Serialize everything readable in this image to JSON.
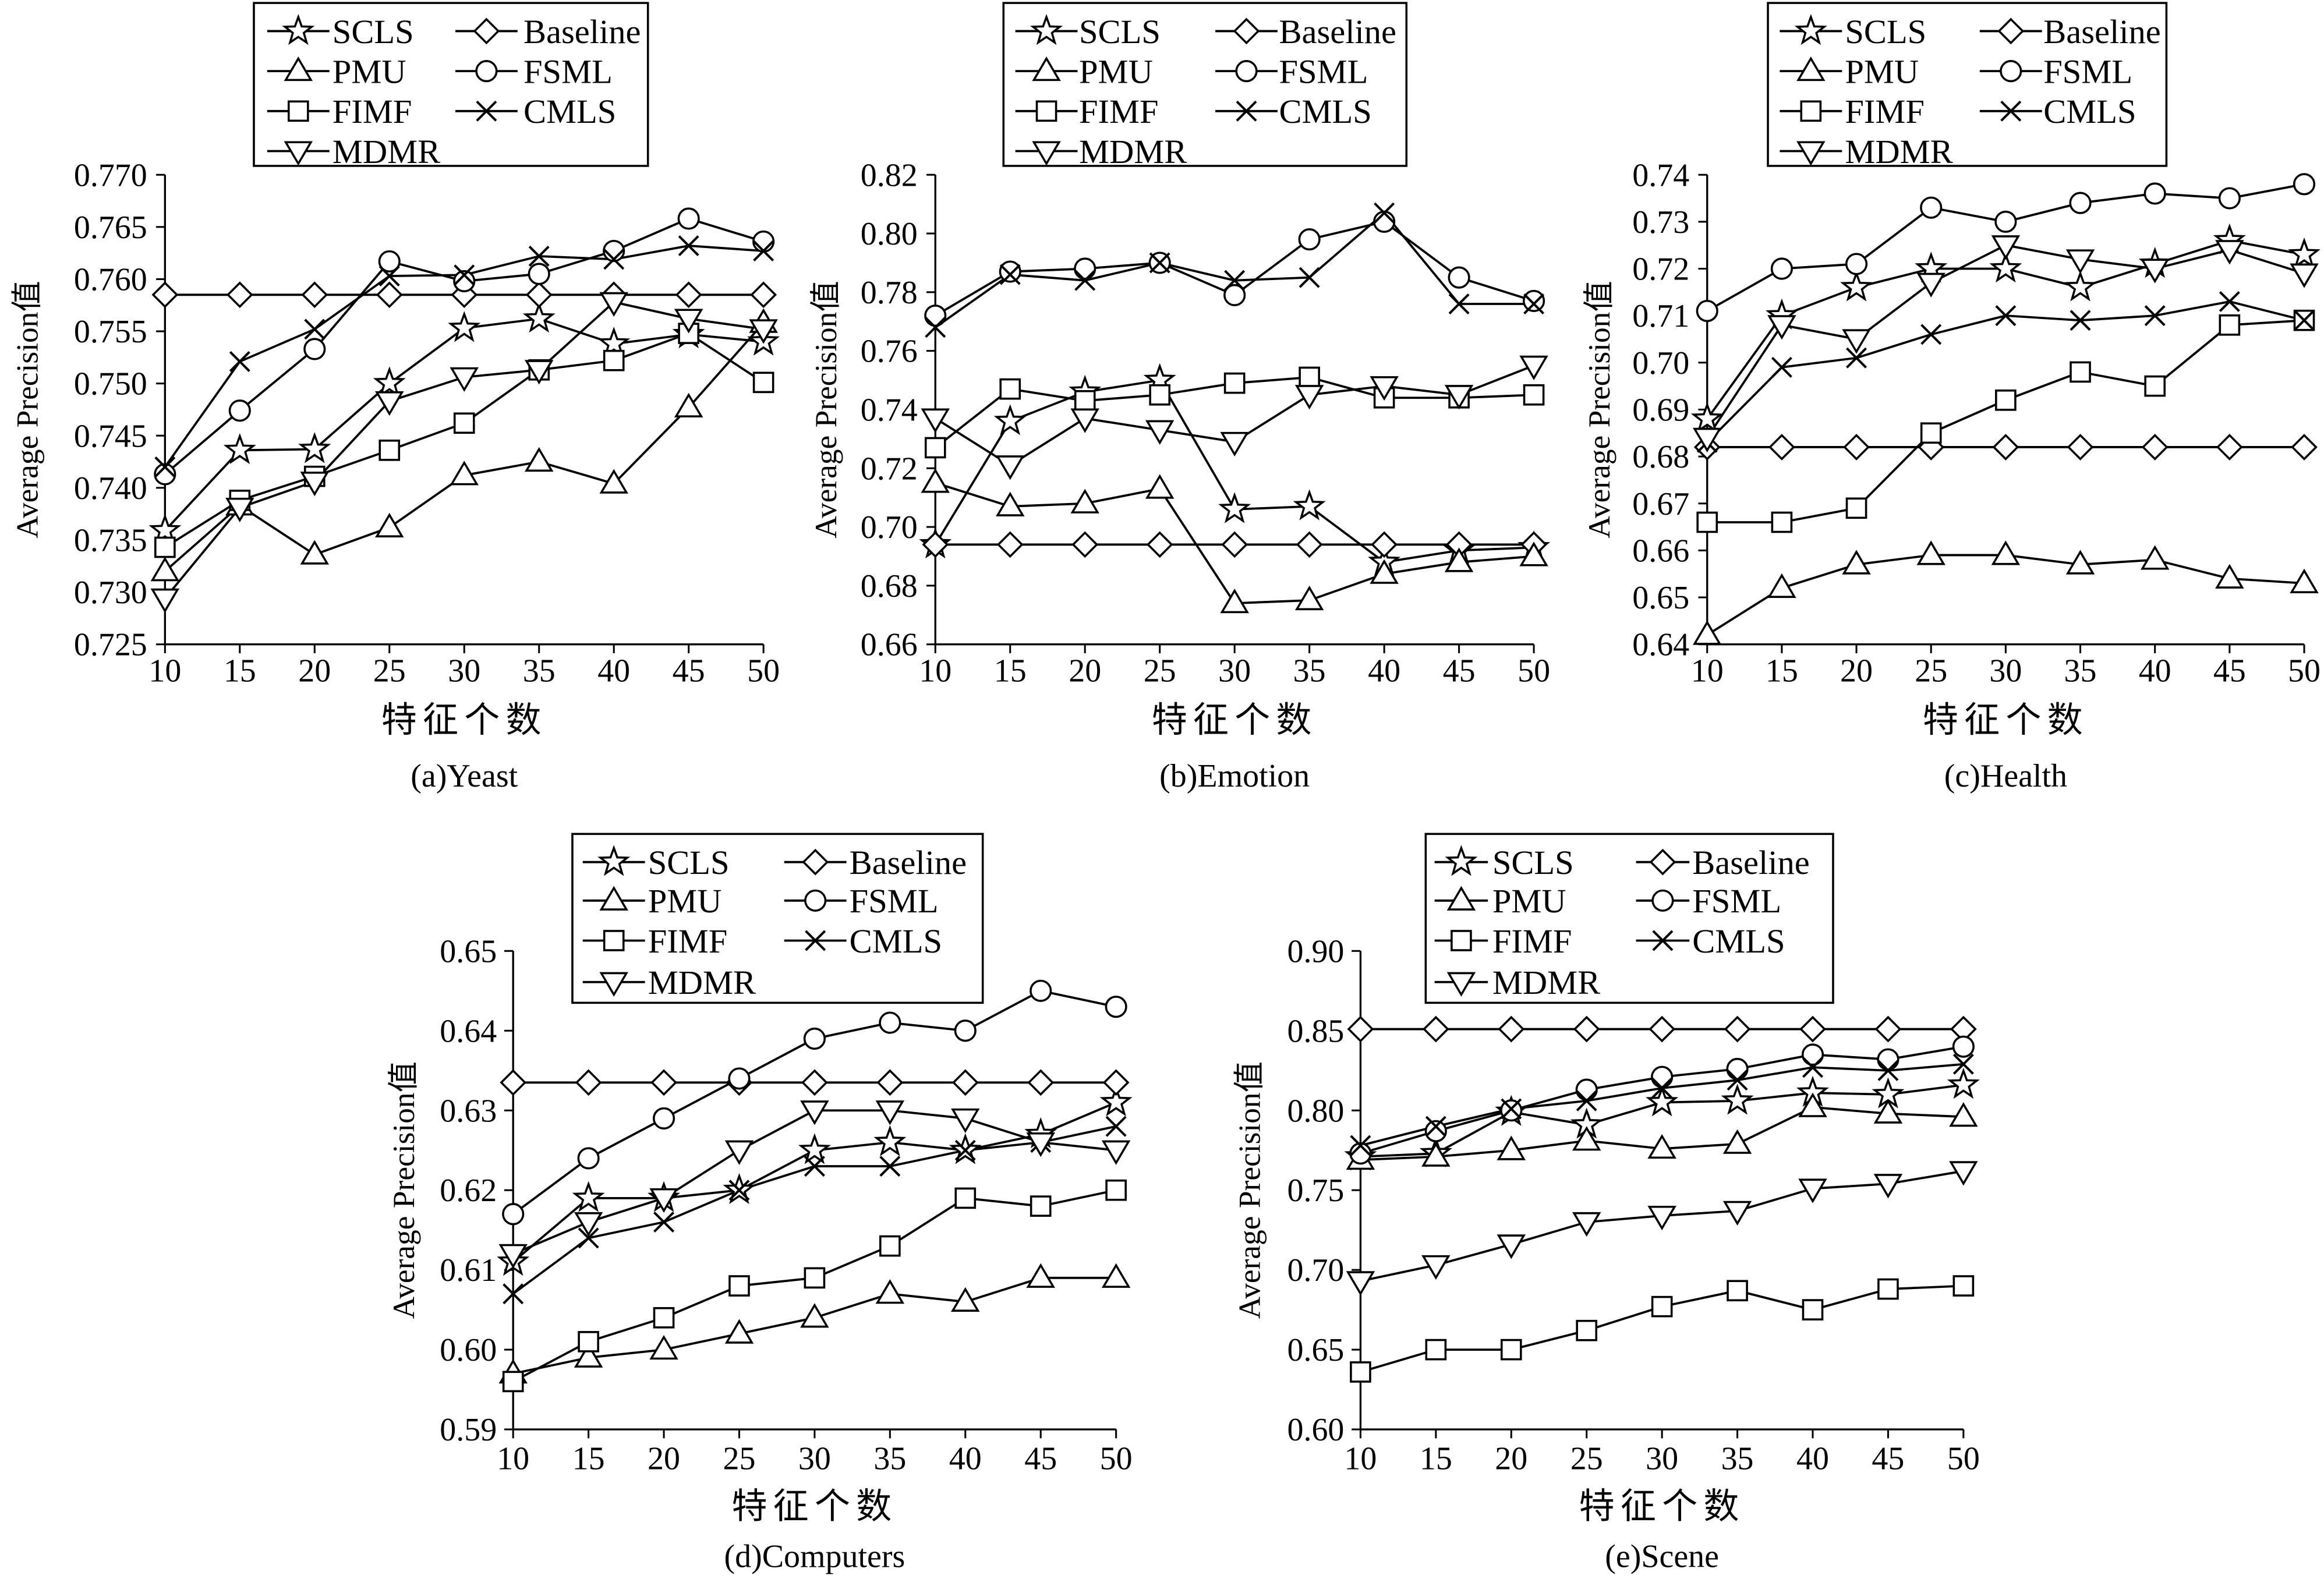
{
  "chart_data": [
    {
      "type": "line",
      "caption": "(a)Yeast",
      "xlabel": "特征个数",
      "ylabel": "Average Precision值",
      "x": [
        10,
        15,
        20,
        25,
        30,
        35,
        40,
        45,
        50
      ],
      "ylim": [
        0.725,
        0.77
      ],
      "yticks": [
        "0.725",
        "0.730",
        "0.735",
        "0.740",
        "0.745",
        "0.750",
        "0.755",
        "0.760",
        "0.765",
        "0.770"
      ],
      "grid": false,
      "legend": "top",
      "line_color": "#000000",
      "series": [
        {
          "name": "SCLS",
          "marker": "star",
          "values": [
            0.7359,
            0.7436,
            0.7437,
            0.75,
            0.7553,
            0.7562,
            0.7538,
            0.7547,
            0.754
          ]
        },
        {
          "name": "Baseline",
          "marker": "diamond",
          "values": [
            0.7585,
            0.7585,
            0.7585,
            0.7585,
            0.7585,
            0.7585,
            0.7585,
            0.7585,
            0.7585
          ]
        },
        {
          "name": "PMU",
          "marker": "triangle",
          "values": [
            0.732,
            0.7383,
            0.7336,
            0.7362,
            0.7412,
            0.7425,
            0.7404,
            0.7477,
            0.7558
          ]
        },
        {
          "name": "FSML",
          "marker": "circle",
          "values": [
            0.7413,
            0.7474,
            0.7533,
            0.7617,
            0.7598,
            0.7605,
            0.7627,
            0.7658,
            0.7636
          ]
        },
        {
          "name": "FIMF",
          "marker": "square",
          "values": [
            0.7343,
            0.7388,
            0.7411,
            0.7436,
            0.7462,
            0.7513,
            0.7522,
            0.7548,
            0.7501
          ]
        },
        {
          "name": "CMLS",
          "marker": "x",
          "values": [
            0.742,
            0.7521,
            0.7552,
            0.7603,
            0.7604,
            0.7622,
            0.7619,
            0.7632,
            0.7627
          ]
        },
        {
          "name": "MDMR",
          "marker": "triangle-down",
          "values": [
            0.7294,
            0.7381,
            0.7406,
            0.7483,
            0.7506,
            0.7513,
            0.7578,
            0.7562,
            0.7552
          ]
        }
      ]
    },
    {
      "type": "line",
      "caption": "(b)Emotion",
      "xlabel": "特征个数",
      "ylabel": "Average Precision值",
      "x": [
        10,
        15,
        20,
        25,
        30,
        35,
        40,
        45,
        50
      ],
      "ylim": [
        0.66,
        0.82
      ],
      "yticks": [
        "0.66",
        "0.68",
        "0.70",
        "0.72",
        "0.74",
        "0.76",
        "0.78",
        "0.80",
        "0.82"
      ],
      "grid": false,
      "legend": "top",
      "line_color": "#000000",
      "series": [
        {
          "name": "SCLS",
          "marker": "star",
          "values": [
            0.694,
            0.736,
            0.746,
            0.75,
            0.706,
            0.707,
            0.688,
            0.692,
            0.693
          ]
        },
        {
          "name": "Baseline",
          "marker": "diamond",
          "values": [
            0.694,
            0.694,
            0.694,
            0.694,
            0.694,
            0.694,
            0.694,
            0.694,
            0.694
          ]
        },
        {
          "name": "PMU",
          "marker": "triangle",
          "values": [
            0.715,
            0.707,
            0.708,
            0.713,
            0.674,
            0.675,
            0.684,
            0.688,
            0.69
          ]
        },
        {
          "name": "FSML",
          "marker": "circle",
          "values": [
            0.772,
            0.787,
            0.788,
            0.79,
            0.779,
            0.798,
            0.804,
            0.785,
            0.777
          ]
        },
        {
          "name": "FIMF",
          "marker": "square",
          "values": [
            0.727,
            0.747,
            0.743,
            0.745,
            0.749,
            0.751,
            0.744,
            0.744,
            0.745
          ]
        },
        {
          "name": "CMLS",
          "marker": "x",
          "values": [
            0.768,
            0.786,
            0.784,
            0.79,
            0.784,
            0.785,
            0.807,
            0.776,
            0.776
          ]
        },
        {
          "name": "MDMR",
          "marker": "triangle-down",
          "values": [
            0.737,
            0.721,
            0.737,
            0.733,
            0.729,
            0.745,
            0.748,
            0.745,
            0.755
          ]
        }
      ]
    },
    {
      "type": "line",
      "caption": "(c)Health",
      "xlabel": "特征个数",
      "ylabel": "Average Precision值",
      "x": [
        10,
        15,
        20,
        25,
        30,
        35,
        40,
        45,
        50
      ],
      "ylim": [
        0.64,
        0.74
      ],
      "yticks": [
        "0.64",
        "0.65",
        "0.66",
        "0.67",
        "0.68",
        "0.69",
        "0.70",
        "0.71",
        "0.72",
        "0.73",
        "0.74"
      ],
      "grid": false,
      "legend": "top",
      "line_color": "#000000",
      "series": [
        {
          "name": "SCLS",
          "marker": "star",
          "values": [
            0.688,
            0.71,
            0.716,
            0.72,
            0.72,
            0.716,
            0.721,
            0.726,
            0.723
          ]
        },
        {
          "name": "Baseline",
          "marker": "diamond",
          "values": [
            0.682,
            0.682,
            0.682,
            0.682,
            0.682,
            0.682,
            0.682,
            0.682,
            0.682
          ]
        },
        {
          "name": "PMU",
          "marker": "triangle",
          "values": [
            0.642,
            0.652,
            0.657,
            0.659,
            0.659,
            0.657,
            0.658,
            0.654,
            0.653
          ]
        },
        {
          "name": "FSML",
          "marker": "circle",
          "values": [
            0.711,
            0.72,
            0.721,
            0.733,
            0.73,
            0.734,
            0.736,
            0.735,
            0.738
          ]
        },
        {
          "name": "FIMF",
          "marker": "square",
          "values": [
            0.666,
            0.666,
            0.669,
            0.685,
            0.692,
            0.698,
            0.695,
            0.708,
            0.709
          ]
        },
        {
          "name": "CMLS",
          "marker": "x",
          "values": [
            0.683,
            0.699,
            0.701,
            0.706,
            0.71,
            0.709,
            0.71,
            0.713,
            0.709
          ]
        },
        {
          "name": "MDMR",
          "marker": "triangle-down",
          "values": [
            0.684,
            0.708,
            0.705,
            0.717,
            0.725,
            0.722,
            0.72,
            0.724,
            0.719
          ]
        }
      ]
    },
    {
      "type": "line",
      "caption": "(d)Computers",
      "xlabel": "特征个数",
      "ylabel": "Average Precision值",
      "x": [
        10,
        15,
        20,
        25,
        30,
        35,
        40,
        45,
        50
      ],
      "ylim": [
        0.59,
        0.65
      ],
      "yticks": [
        "0.59",
        "0.60",
        "0.61",
        "0.62",
        "0.63",
        "0.64",
        "0.65"
      ],
      "grid": false,
      "legend": "top",
      "line_color": "#000000",
      "series": [
        {
          "name": "SCLS",
          "marker": "star",
          "values": [
            0.611,
            0.619,
            0.619,
            0.62,
            0.625,
            0.626,
            0.625,
            0.627,
            0.631
          ]
        },
        {
          "name": "Baseline",
          "marker": "diamond",
          "values": [
            0.6335,
            0.6335,
            0.6335,
            0.6335,
            0.6335,
            0.6335,
            0.6335,
            0.6335,
            0.6335
          ]
        },
        {
          "name": "PMU",
          "marker": "triangle",
          "values": [
            0.597,
            0.599,
            0.6,
            0.602,
            0.604,
            0.607,
            0.606,
            0.609,
            0.609
          ]
        },
        {
          "name": "FSML",
          "marker": "circle",
          "values": [
            0.617,
            0.624,
            0.629,
            0.634,
            0.639,
            0.641,
            0.64,
            0.645,
            0.643
          ]
        },
        {
          "name": "FIMF",
          "marker": "square",
          "values": [
            0.596,
            0.601,
            0.604,
            0.608,
            0.609,
            0.613,
            0.619,
            0.618,
            0.62
          ]
        },
        {
          "name": "CMLS",
          "marker": "x",
          "values": [
            0.607,
            0.614,
            0.616,
            0.62,
            0.623,
            0.623,
            0.625,
            0.626,
            0.628
          ]
        },
        {
          "name": "MDMR",
          "marker": "triangle-down",
          "values": [
            0.612,
            0.616,
            0.619,
            0.625,
            0.63,
            0.63,
            0.629,
            0.626,
            0.625
          ]
        }
      ]
    },
    {
      "type": "line",
      "caption": "(e)Scene",
      "xlabel": "特征个数",
      "ylabel": "Average Precision值",
      "x": [
        10,
        15,
        20,
        25,
        30,
        35,
        40,
        45,
        50
      ],
      "ylim": [
        0.6,
        0.9
      ],
      "yticks": [
        "0.60",
        "0.65",
        "0.70",
        "0.75",
        "0.80",
        "0.85",
        "0.90"
      ],
      "grid": false,
      "legend": "top",
      "line_color": "#000000",
      "series": [
        {
          "name": "SCLS",
          "marker": "star",
          "values": [
            0.771,
            0.773,
            0.799,
            0.791,
            0.805,
            0.806,
            0.811,
            0.81,
            0.816
          ]
        },
        {
          "name": "Baseline",
          "marker": "diamond",
          "values": [
            0.851,
            0.851,
            0.851,
            0.851,
            0.851,
            0.851,
            0.851,
            0.851,
            0.851
          ]
        },
        {
          "name": "PMU",
          "marker": "triangle",
          "values": [
            0.769,
            0.771,
            0.775,
            0.781,
            0.776,
            0.779,
            0.802,
            0.798,
            0.796
          ]
        },
        {
          "name": "FSML",
          "marker": "circle",
          "values": [
            0.773,
            0.787,
            0.8,
            0.813,
            0.821,
            0.826,
            0.835,
            0.832,
            0.84
          ]
        },
        {
          "name": "FIMF",
          "marker": "square",
          "values": [
            0.636,
            0.65,
            0.65,
            0.662,
            0.677,
            0.687,
            0.675,
            0.688,
            0.69
          ]
        },
        {
          "name": "CMLS",
          "marker": "x",
          "values": [
            0.778,
            0.79,
            0.801,
            0.806,
            0.814,
            0.819,
            0.827,
            0.825,
            0.829
          ]
        },
        {
          "name": "MDMR",
          "marker": "triangle-down",
          "values": [
            0.693,
            0.703,
            0.716,
            0.73,
            0.734,
            0.737,
            0.751,
            0.754,
            0.762
          ]
        }
      ]
    }
  ]
}
